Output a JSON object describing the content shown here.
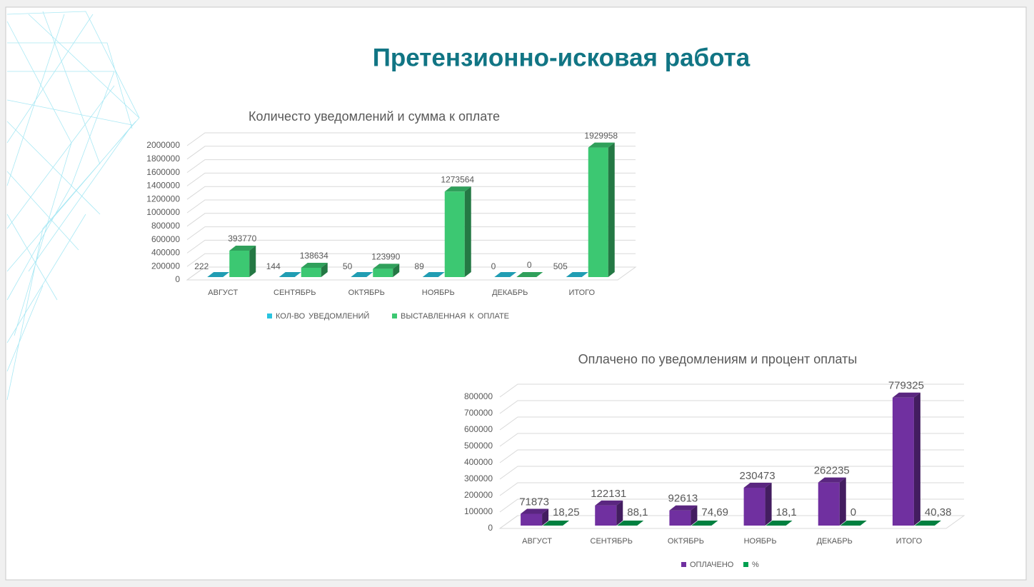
{
  "title": "Претензионно-исковая работа",
  "chart_data": [
    {
      "type": "bar3d",
      "title": "Количесто уведомлений и сумма к оплате",
      "categories": [
        "АВГУСТ",
        "СЕНТЯБРЬ",
        "ОКТЯБРЬ",
        "НОЯБРЬ",
        "ДЕКАБРЬ",
        "ИТОГО"
      ],
      "series": [
        {
          "name": "КОЛ-ВО УВЕДОМЛЕНИЙ",
          "color": "#29c4e0",
          "values": [
            222,
            144,
            50,
            89,
            0,
            505
          ]
        },
        {
          "name": "ВЫСТАВЛЕННАЯ К ОПЛАТЕ",
          "color": "#3cc872",
          "values": [
            393770,
            138634,
            123990,
            1273564,
            0,
            1929958
          ]
        }
      ],
      "ylim": [
        0,
        2000000
      ],
      "yticks": [
        0,
        200000,
        400000,
        600000,
        800000,
        1000000,
        1200000,
        1400000,
        1600000,
        1800000,
        2000000
      ],
      "grid": true,
      "legend": "bottom"
    },
    {
      "type": "bar3d",
      "title": "Оплачено по уведомлениям и процент оплаты",
      "categories": [
        "АВГУСТ",
        "СЕНТЯБРЬ",
        "ОКТЯБРЬ",
        "НОЯБРЬ",
        "ДЕКАБРЬ",
        "ИТОГО"
      ],
      "series": [
        {
          "name": "ОПЛАЧЕНО",
          "color": "#7030a0",
          "values": [
            71873,
            122131,
            92613,
            230473,
            262235,
            779325
          ]
        },
        {
          "name": "%",
          "color": "#00a050",
          "values": [
            18.25,
            88.1,
            74.69,
            18.1,
            0,
            40.38
          ],
          "value_labels": [
            "18,25",
            "88,1",
            "74,69",
            "18,1",
            "0",
            "40,38"
          ]
        }
      ],
      "ylim": [
        0,
        800000
      ],
      "yticks": [
        0,
        100000,
        200000,
        300000,
        400000,
        500000,
        600000,
        700000,
        800000
      ],
      "grid": true,
      "legend": "bottom"
    }
  ]
}
